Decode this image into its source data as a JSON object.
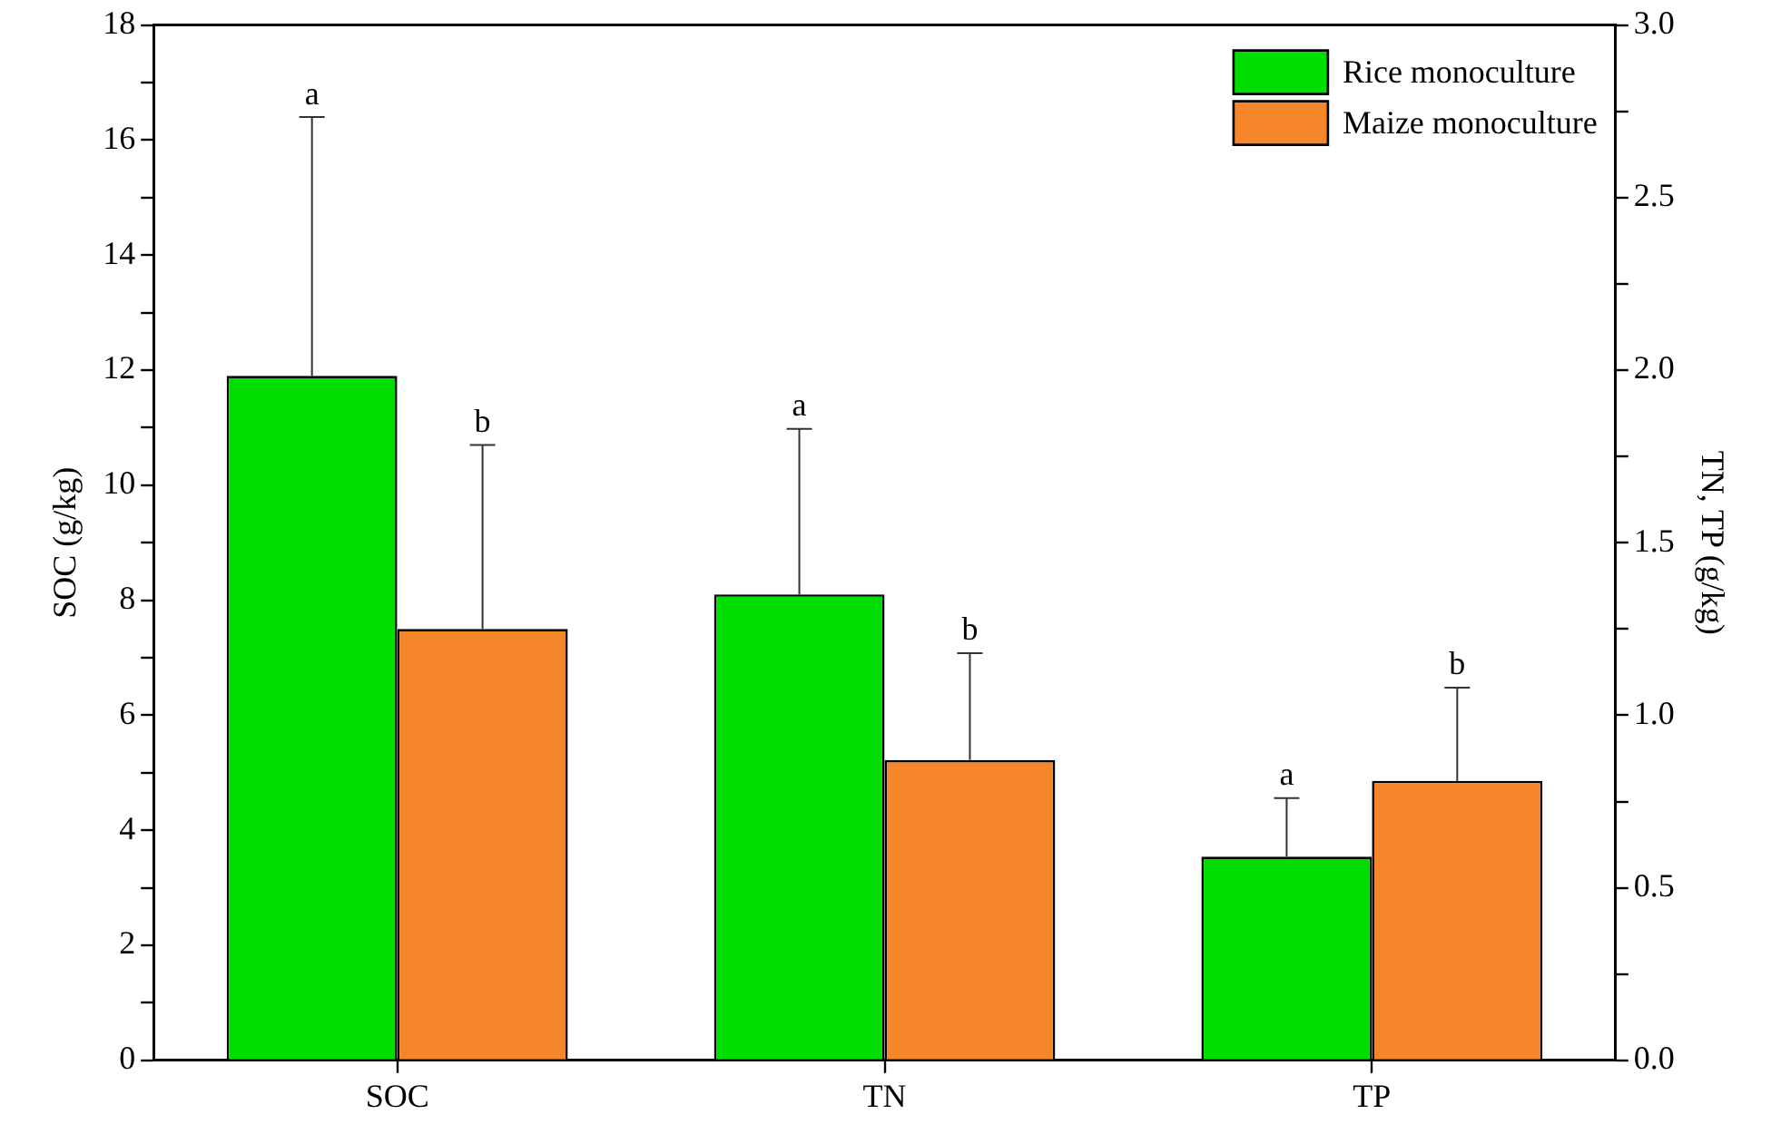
{
  "chart_data": {
    "type": "bar",
    "categories": [
      "SOC",
      "TN",
      "TP"
    ],
    "ylabel": "SOC (g/kg)",
    "y2label": "TN, TP (g/kg)",
    "ylim": [
      0,
      18
    ],
    "yticks": [
      0,
      {
        "value": 1,
        "label": null
      },
      2,
      {
        "value": 3,
        "label": null
      },
      4,
      {
        "value": 5,
        "label": null
      },
      6,
      {
        "value": 7,
        "label": null
      },
      8,
      {
        "value": 9,
        "label": null
      },
      10,
      {
        "value": 11,
        "label": null
      },
      12,
      {
        "value": 13,
        "label": null
      },
      14,
      {
        "value": 15,
        "label": null
      },
      16,
      {
        "value": 17,
        "label": null
      },
      18
    ],
    "y2lim": [
      0,
      3
    ],
    "y2ticks": [
      {
        "value": 0,
        "label": "0.0"
      },
      {
        "value": 0.25,
        "label": null
      },
      {
        "value": 0.5,
        "label": "0.5"
      },
      {
        "value": 0.75,
        "label": null
      },
      {
        "value": 1,
        "label": "1.0"
      },
      {
        "value": 1.25,
        "label": null
      },
      {
        "value": 1.5,
        "label": "1.5"
      },
      {
        "value": 1.75,
        "label": null
      },
      {
        "value": 2,
        "label": "2.0"
      },
      {
        "value": 2.25,
        "label": null
      },
      {
        "value": 2.5,
        "label": "2.5"
      },
      {
        "value": 2.75,
        "label": null
      },
      {
        "value": 3,
        "label": "3.0"
      }
    ],
    "series": [
      {
        "name": "Rice monoculture",
        "color": "#00dd00",
        "values": [
          11.9,
          null,
          null
        ],
        "errors": [
          [
            11.9,
            16.4
          ],
          null,
          null
        ]
      },
      {
        "name": "Maize monoculture",
        "color": "#f5862a",
        "values": [
          7.5,
          null,
          null
        ],
        "errors": [
          [
            7.5,
            10.7
          ],
          null,
          null
        ]
      },
      {
        "color": "#00dd00",
        "axis": "y2",
        "values": [
          null,
          1.35,
          0.59
        ],
        "errors": [
          null,
          [
            1.35,
            1.83
          ],
          [
            0.59,
            0.76
          ]
        ]
      },
      {
        "color": "#f5862a",
        "axis": "y2",
        "values": [
          null,
          0.87,
          0.81
        ],
        "errors": [
          null,
          [
            0.87,
            1.18
          ],
          [
            0.81,
            1.08
          ]
        ]
      }
    ],
    "annotations": [
      "a",
      "b",
      "a",
      "b",
      "a",
      "b"
    ],
    "legend": "top right",
    "grid": false
  }
}
